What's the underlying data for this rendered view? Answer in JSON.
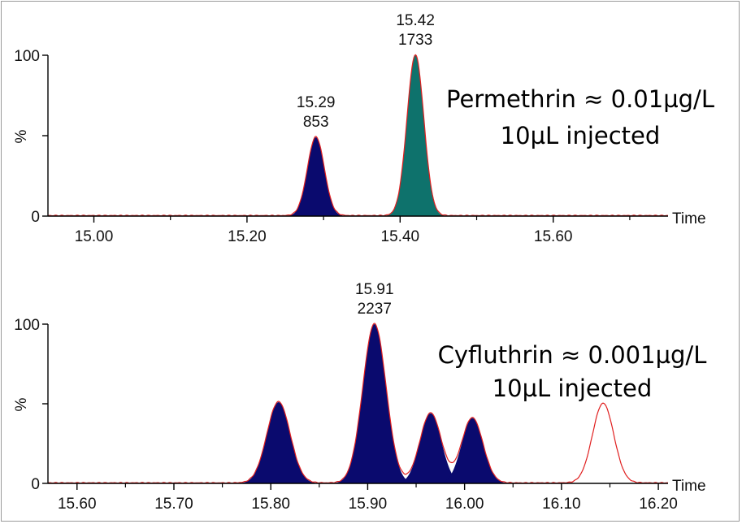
{
  "chart_data": [
    {
      "type": "area",
      "x_axis_label": "Time",
      "y_axis_label": "%",
      "xlim": [
        14.94,
        15.75
      ],
      "ylim": [
        0,
        100
      ],
      "x_ticks": [
        "15.00",
        "15.20",
        "15.40",
        "15.60"
      ],
      "y_ticks": [
        "0",
        "100"
      ],
      "peaks": [
        {
          "rt": 15.29,
          "height": 49,
          "sigma": 0.011,
          "filled": true,
          "color": "#0a0a6e",
          "label_rt": "15.29",
          "label_area": "853"
        },
        {
          "rt": 15.42,
          "height": 100,
          "sigma": 0.011,
          "filled": true,
          "color": "#0e726c",
          "label_rt": "15.42",
          "label_area": "1733"
        }
      ],
      "annotation": [
        "Permethrin ≈ 0.01µg/L",
        "10µL injected"
      ]
    },
    {
      "type": "area",
      "x_axis_label": "Time",
      "y_axis_label": "%",
      "xlim": [
        15.57,
        16.21
      ],
      "ylim": [
        0,
        100
      ],
      "x_ticks": [
        "15.60",
        "15.70",
        "15.80",
        "15.90",
        "16.00",
        "16.10",
        "16.20"
      ],
      "y_ticks": [
        "0",
        "100"
      ],
      "peaks": [
        {
          "rt": 15.808,
          "height": 51,
          "sigma": 0.012,
          "filled": true,
          "color": "#0a0a6e"
        },
        {
          "rt": 15.907,
          "height": 100,
          "sigma": 0.012,
          "filled": true,
          "color": "#0a0a6e",
          "label_rt": "15.91",
          "label_area": "2237"
        },
        {
          "rt": 15.965,
          "height": 44,
          "sigma": 0.011,
          "filled": true,
          "color": "#0a0a6e"
        },
        {
          "rt": 16.008,
          "height": 41,
          "sigma": 0.011,
          "filled": true,
          "color": "#0a0a6e"
        },
        {
          "rt": 16.143,
          "height": 50,
          "sigma": 0.011,
          "filled": false,
          "color": "#e02020"
        }
      ],
      "annotation": [
        "Cyfluthrin ≈ 0.001µg/L",
        "10µL injected"
      ]
    }
  ],
  "colors": {
    "trace": "#e02020",
    "axis": "#000000"
  }
}
